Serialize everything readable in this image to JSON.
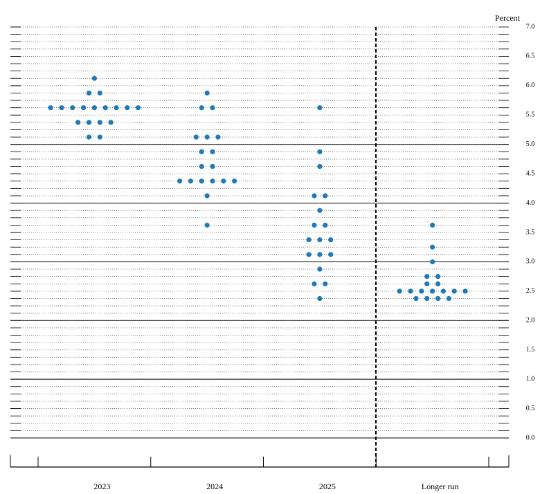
{
  "chart_data": {
    "type": "dotplot",
    "y_label": "Percent",
    "categories": [
      "2023",
      "2024",
      "2025",
      "Longer run"
    ],
    "values": [
      [
        6.125,
        5.875,
        5.875,
        5.625,
        5.625,
        5.625,
        5.625,
        5.625,
        5.625,
        5.625,
        5.625,
        5.625,
        5.375,
        5.375,
        5.375,
        5.375,
        5.125,
        5.125
      ],
      [
        5.875,
        5.625,
        5.625,
        5.125,
        5.125,
        5.125,
        4.875,
        4.875,
        4.625,
        4.625,
        4.375,
        4.375,
        4.375,
        4.375,
        4.375,
        4.375,
        4.125,
        3.625
      ],
      [
        5.625,
        4.875,
        4.625,
        4.125,
        4.125,
        3.875,
        3.625,
        3.625,
        3.375,
        3.375,
        3.375,
        3.125,
        3.125,
        3.125,
        2.875,
        2.625,
        2.625,
        2.375
      ],
      [
        3.625,
        3.25,
        3.0,
        2.75,
        2.75,
        2.625,
        2.625,
        2.5,
        2.5,
        2.5,
        2.5,
        2.5,
        2.5,
        2.5,
        2.375,
        2.375,
        2.375,
        2.375
      ]
    ],
    "color": "#1f7ab5",
    "ylim": [
      0,
      7
    ],
    "yticks": [
      {
        "value": 0,
        "label": "0.0"
      },
      0.5,
      {
        "value": 1,
        "label": "1.0"
      },
      1.5,
      {
        "value": 2,
        "label": "2.0"
      },
      2.5,
      {
        "value": 3,
        "label": "3.0"
      },
      3.5,
      {
        "value": 4,
        "label": "4.0"
      },
      4.5,
      {
        "value": 5,
        "label": "5.0"
      },
      5.5,
      {
        "value": 6,
        "label": "6.0"
      },
      6.5,
      {
        "value": 7,
        "label": "7.0"
      }
    ],
    "grid": true
  }
}
